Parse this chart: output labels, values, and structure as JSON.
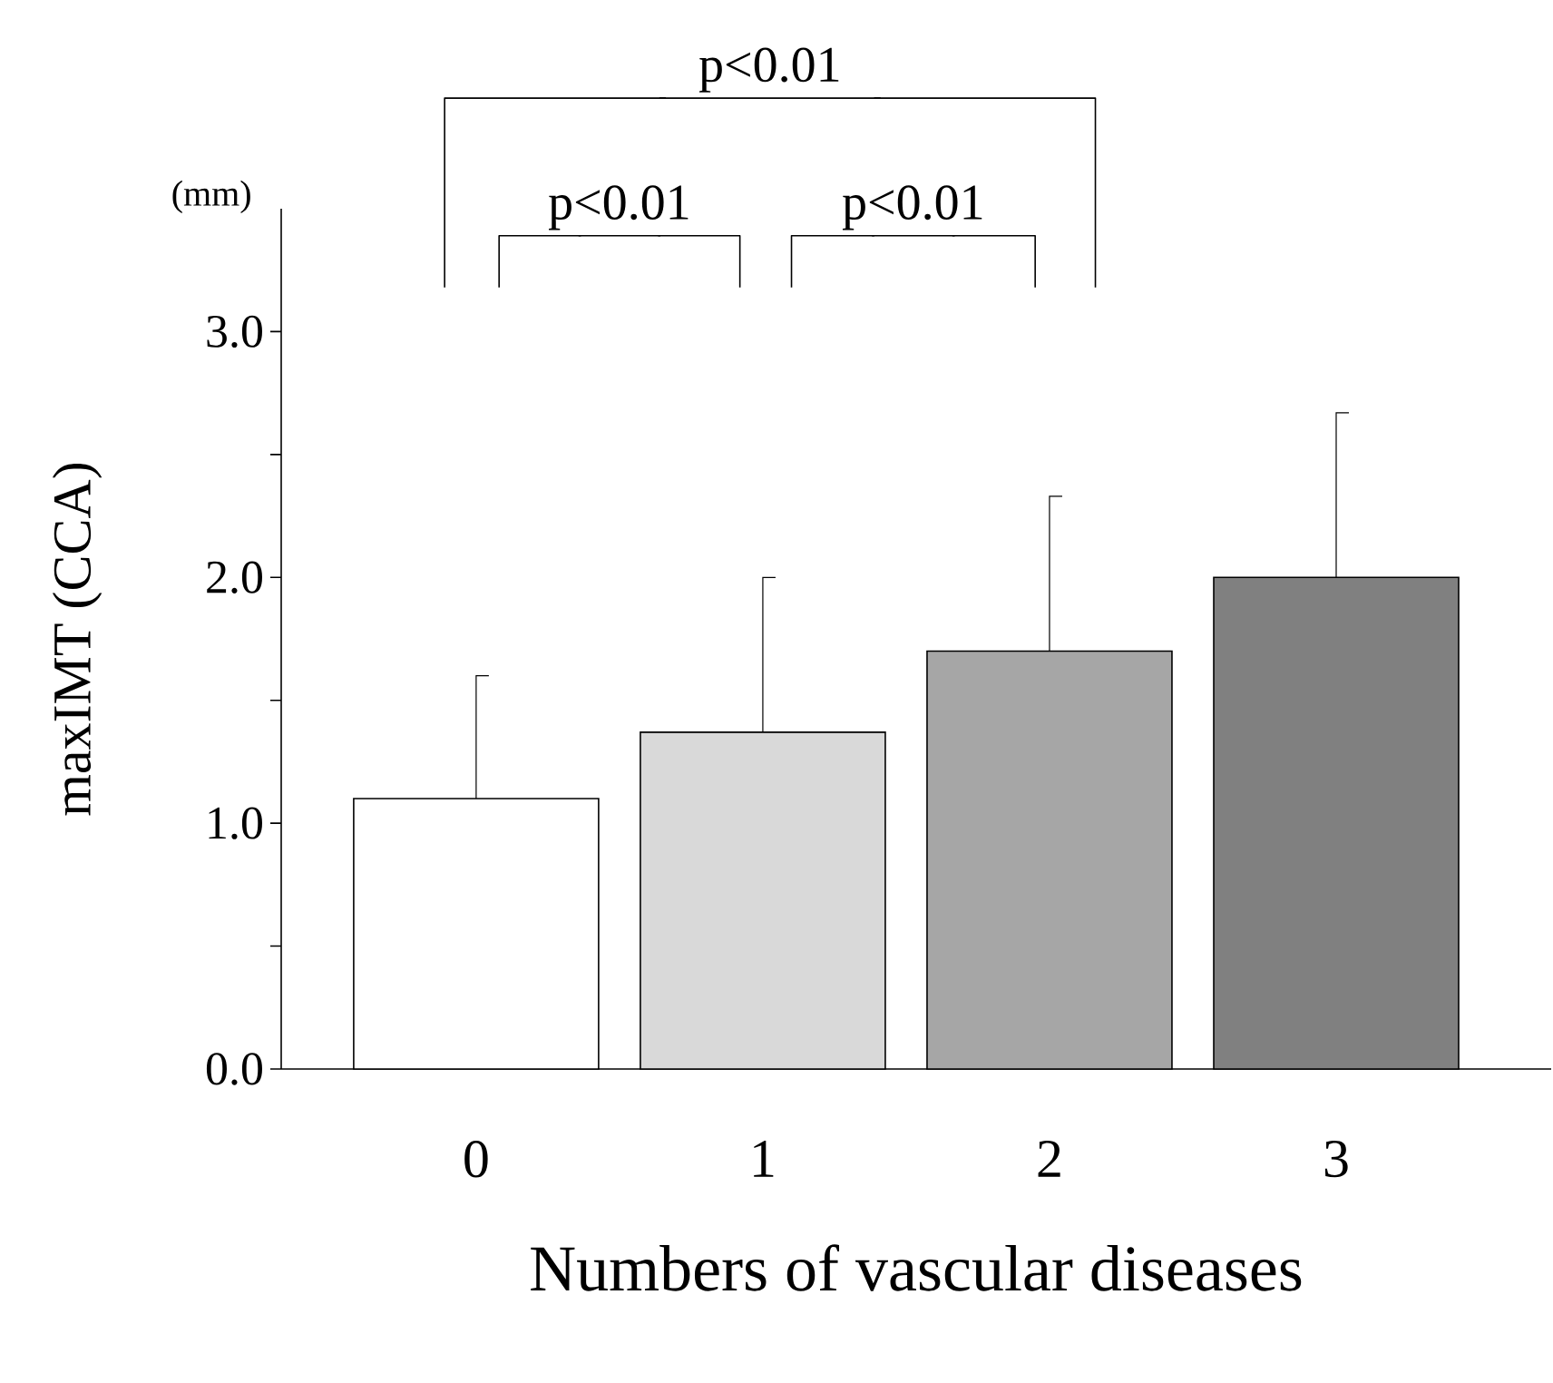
{
  "chart_data": {
    "type": "bar",
    "categories": [
      "0",
      "1",
      "2",
      "3"
    ],
    "values": [
      1.1,
      1.37,
      1.7,
      2.0
    ],
    "colors": [
      "#ffffff",
      "#d9d9d9",
      "#a6a6a6",
      "#808080"
    ],
    "errors": [
      [
        1.1,
        1.6
      ],
      [
        1.37,
        2.0
      ],
      [
        1.7,
        2.33
      ],
      [
        2.0,
        2.67
      ]
    ],
    "ylim": [
      0,
      3.5
    ],
    "yticks": [
      {
        "value": 0,
        "label": "0.0"
      },
      {
        "value": 0.5,
        "label": null
      },
      {
        "value": 1,
        "label": "1.0"
      },
      {
        "value": 1.5,
        "label": null
      },
      {
        "value": 2,
        "label": "2.0"
      },
      {
        "value": 2.5,
        "label": null
      },
      {
        "value": 3,
        "label": "3.0"
      }
    ],
    "xlabel": "Numbers of vascular diseases",
    "ylabel": "maxIMT (CCA)",
    "annotations": [
      "(mm)",
      "p<0.01",
      "p<0.01",
      "p<0.01"
    ]
  }
}
